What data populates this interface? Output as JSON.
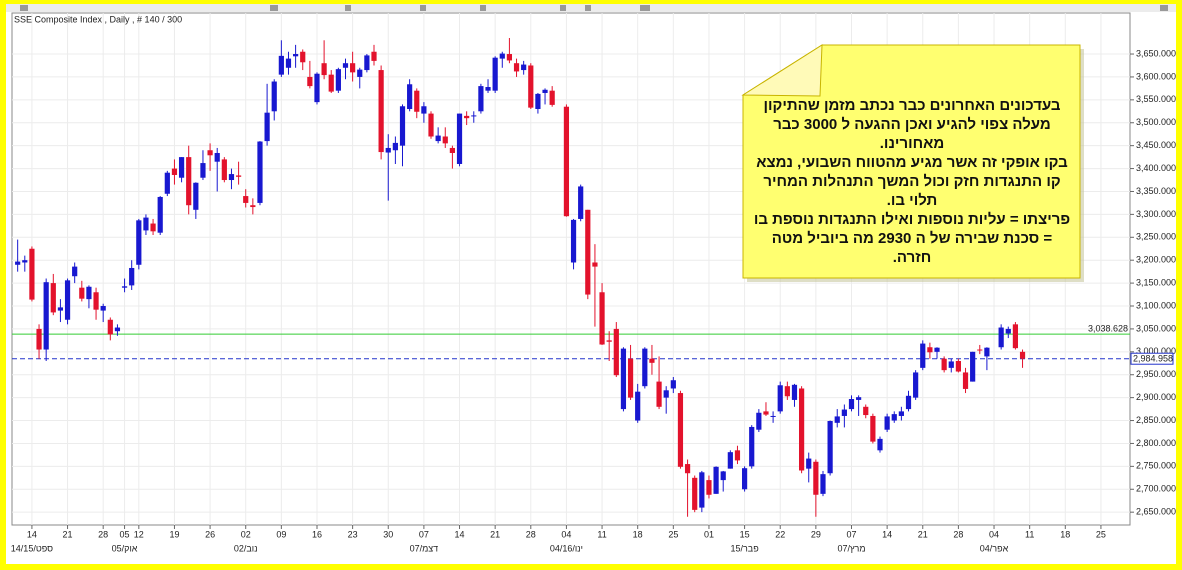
{
  "chart_data": {
    "type": "candlestick",
    "title": "SSE Composite Index , Daily , # 140 / 300",
    "up_color": "#1818d0",
    "down_color": "#e3122c",
    "grid": true,
    "categories": [
      null,
      null,
      "14",
      null,
      null,
      null,
      null,
      "21",
      null,
      null,
      null,
      null,
      "28",
      null,
      null,
      "05",
      null,
      "12",
      null,
      null,
      null,
      null,
      "19",
      null,
      null,
      null,
      null,
      "26",
      null,
      null,
      null,
      null,
      "02",
      null,
      null,
      null,
      null,
      "09",
      null,
      null,
      null,
      null,
      "16",
      null,
      null,
      null,
      null,
      "23",
      null,
      null,
      null,
      null,
      "30",
      null,
      null,
      null,
      null,
      "07",
      null,
      null,
      null,
      null,
      "14",
      null,
      null,
      null,
      null,
      "21",
      null,
      null,
      null,
      null,
      "28",
      null,
      null,
      null,
      null,
      "04",
      null,
      null,
      null,
      null,
      "11",
      null,
      null,
      null,
      null,
      "18",
      null,
      null,
      null,
      null,
      "25",
      null,
      null,
      null,
      null,
      "01",
      null,
      null,
      null,
      null,
      "15",
      null,
      null,
      null,
      null,
      "22",
      null,
      null,
      null,
      null,
      "29",
      null,
      null,
      null,
      null,
      "07",
      null,
      null,
      null,
      null,
      "14",
      null,
      null,
      null,
      null,
      "21",
      null,
      null,
      null,
      null,
      "28",
      null,
      null,
      null,
      null,
      "04",
      null,
      null,
      null,
      null,
      "11",
      null,
      null,
      null,
      null,
      "18",
      null,
      null,
      null,
      null,
      "25",
      null,
      null,
      null,
      null
    ],
    "subcategories": [
      null,
      null,
      "14/15/ספט",
      null,
      null,
      null,
      null,
      null,
      null,
      null,
      null,
      null,
      null,
      null,
      null,
      "05/אוק",
      null,
      null,
      null,
      null,
      null,
      null,
      null,
      null,
      null,
      null,
      null,
      null,
      null,
      null,
      null,
      null,
      "02/נוב",
      null,
      null,
      null,
      null,
      null,
      null,
      null,
      null,
      null,
      null,
      null,
      null,
      null,
      null,
      null,
      null,
      null,
      null,
      null,
      null,
      null,
      null,
      null,
      null,
      "07/דצמ",
      null,
      null,
      null,
      null,
      null,
      null,
      null,
      null,
      null,
      null,
      null,
      null,
      null,
      null,
      null,
      null,
      null,
      null,
      null,
      "04/16/ינו",
      null,
      null,
      null,
      null,
      null,
      null,
      null,
      null,
      null,
      null,
      null,
      null,
      null,
      null,
      null,
      null,
      null,
      null,
      null,
      null,
      null,
      null,
      null,
      null,
      "15/פבר",
      null,
      null,
      null,
      null,
      null,
      null,
      null,
      null,
      null,
      null,
      null,
      null,
      null,
      null,
      "07/מרץ",
      null,
      null,
      null,
      null,
      null,
      null,
      null,
      null,
      null,
      null,
      null,
      null,
      null,
      null,
      null,
      null,
      null,
      null,
      null,
      "04/אפר",
      null,
      null,
      null,
      null,
      null,
      null,
      null,
      null,
      null,
      null,
      null,
      null,
      null,
      null,
      null,
      null,
      null,
      null,
      null
    ],
    "open": [
      3190,
      3195,
      3225,
      3050,
      3005,
      3150,
      3090,
      3070,
      3165,
      3140,
      3115,
      3130,
      3090,
      3070,
      3045,
      3140,
      3145,
      3190,
      3265,
      3280,
      3260,
      3345,
      3400,
      3380,
      3425,
      3310,
      3380,
      3440,
      3415,
      3420,
      3375,
      3385,
      3340,
      3320,
      3325,
      3460,
      3525,
      3605,
      3620,
      3645,
      3655,
      3600,
      3545,
      3630,
      3605,
      3570,
      3620,
      3630,
      3600,
      3615,
      3655,
      3615,
      3435,
      3440,
      3450,
      3530,
      3570,
      3520,
      3520,
      3460,
      3470,
      3445,
      3410,
      3515,
      3515,
      3525,
      3570,
      3570,
      3640,
      3650,
      3630,
      3615,
      3625,
      3530,
      3565,
      3570,
      null,
      3535,
      3195,
      3290,
      3310,
      3195,
      3130,
      3025,
      3050,
      2875,
      2985,
      2850,
      2925,
      2985,
      2935,
      2900,
      2920,
      2910,
      2755,
      2725,
      2660,
      2720,
      2690,
      2720,
      2745,
      2785,
      2700,
      2750,
      2830,
      2870,
      2860,
      2870,
      2925,
      2895,
      2920,
      2745,
      2760,
      2690,
      2735,
      2845,
      2860,
      2875,
      2895,
      2880,
      2860,
      2785,
      2830,
      2850,
      2860,
      2875,
      2900,
      2965,
      3010,
      3000,
      2985,
      2965,
      2980,
      2955,
      2935,
      3005,
      2990,
      null,
      3010,
      3040,
      3060,
      3000,
      null,
      null,
      null,
      null,
      null,
      null,
      null,
      null,
      null,
      null,
      null,
      null,
      null,
      null,
      null
    ],
    "high": [
      3245,
      3210,
      3230,
      3060,
      3160,
      3170,
      3115,
      3160,
      3195,
      3155,
      3145,
      3140,
      3105,
      3075,
      3060,
      3160,
      3200,
      3290,
      3300,
      3290,
      3340,
      3395,
      3420,
      3425,
      3450,
      3370,
      3440,
      3455,
      3445,
      3425,
      3400,
      3415,
      3355,
      3335,
      3460,
      3585,
      3595,
      3680,
      3655,
      3670,
      3660,
      3635,
      3610,
      3680,
      3615,
      3620,
      3640,
      3655,
      3620,
      3650,
      3670,
      3625,
      3475,
      3470,
      3540,
      3595,
      3575,
      3545,
      3525,
      3490,
      3490,
      3450,
      3520,
      3525,
      3525,
      3585,
      3595,
      3645,
      3655,
      3685,
      3640,
      3635,
      3630,
      3565,
      3575,
      3580,
      null,
      3540,
      3290,
      3365,
      3310,
      3235,
      3150,
      3045,
      3065,
      3010,
      3015,
      2930,
      3010,
      3015,
      2990,
      2925,
      2945,
      2915,
      2765,
      2730,
      2740,
      2730,
      2750,
      2740,
      2785,
      2795,
      2750,
      2840,
      2875,
      2890,
      2870,
      2935,
      2935,
      2930,
      2925,
      2780,
      2765,
      2740,
      2850,
      2875,
      2885,
      2905,
      2905,
      2885,
      2865,
      2815,
      2865,
      2870,
      2880,
      2915,
      2960,
      3025,
      3020,
      3010,
      2990,
      2985,
      2985,
      2965,
      3000,
      3015,
      3010,
      null,
      3060,
      3055,
      3065,
      3005,
      null,
      null,
      null,
      null,
      null,
      null,
      null,
      null,
      null,
      null,
      null,
      null,
      null,
      null,
      null
    ],
    "low": [
      3175,
      3175,
      3110,
      2985,
      2980,
      3080,
      3065,
      3060,
      3150,
      3110,
      3095,
      3070,
      3065,
      3025,
      3035,
      3130,
      3135,
      3180,
      3255,
      3255,
      3255,
      3340,
      3365,
      3370,
      3300,
      3290,
      3375,
      3395,
      3350,
      3370,
      3355,
      3365,
      3315,
      3300,
      3320,
      3450,
      3505,
      3600,
      3605,
      3620,
      3615,
      3575,
      3540,
      3595,
      3565,
      3565,
      3595,
      3590,
      3575,
      3610,
      3625,
      3420,
      3330,
      3410,
      3405,
      3525,
      3510,
      3500,
      3465,
      3455,
      3445,
      3400,
      3405,
      3495,
      3500,
      3520,
      3565,
      3565,
      3620,
      3630,
      3600,
      3605,
      3530,
      3520,
      3540,
      3535,
      null,
      3295,
      3180,
      3285,
      3115,
      3055,
      3015,
      2980,
      2945,
      2870,
      2895,
      2845,
      2920,
      2950,
      2875,
      2865,
      2910,
      2745,
      2640,
      2650,
      2650,
      2680,
      2690,
      2695,
      2745,
      2755,
      2695,
      2745,
      2825,
      2860,
      2845,
      2865,
      2895,
      2880,
      2735,
      2715,
      2640,
      2685,
      2730,
      2835,
      2835,
      2870,
      2860,
      2855,
      2800,
      2780,
      2825,
      2845,
      2850,
      2870,
      2895,
      2960,
      2985,
      2985,
      2955,
      2955,
      2955,
      2910,
      2935,
      2995,
      2960,
      null,
      3005,
      3030,
      3005,
      2965,
      null,
      null,
      null,
      null,
      null,
      null,
      null,
      null,
      null,
      null,
      null,
      null,
      null,
      null,
      null
    ],
    "close": [
      3197,
      3200,
      3114,
      3005,
      3152,
      3086,
      3097,
      3156,
      3186,
      3116,
      3142,
      3092,
      3100,
      3038,
      3053,
      3143,
      3183,
      3287,
      3293,
      3263,
      3338,
      3391,
      3386,
      3425,
      3320,
      3369,
      3412,
      3429,
      3434,
      3375,
      3388,
      3382,
      3325,
      3316,
      3459,
      3522,
      3590,
      3646,
      3640,
      3650,
      3632,
      3580,
      3607,
      3604,
      3568,
      3617,
      3630,
      3610,
      3616,
      3647,
      3635,
      3436,
      3445,
      3456,
      3536,
      3584,
      3524,
      3536,
      3470,
      3472,
      3455,
      3434,
      3520,
      3510,
      3516,
      3580,
      3578,
      3642,
      3651,
      3636,
      3612,
      3627,
      3533,
      3563,
      3572,
      3539,
      null,
      3296,
      3288,
      3361,
      3125,
      3186,
      3016,
      3022,
      2949,
      3007,
      2900,
      2913,
      3007,
      2976,
      2880,
      2916,
      2938,
      2749,
      2735,
      2655,
      2737,
      2688,
      2749,
      2739,
      2781,
      2763,
      2746,
      2836,
      2867,
      2863,
      2860,
      2927,
      2903,
      2928,
      2741,
      2767,
      2688,
      2733,
      2849,
      2859,
      2874,
      2897,
      2901,
      2862,
      2804,
      2810,
      2859,
      2864,
      2870,
      2904,
      2955,
      3018,
      2999,
      3009,
      2960,
      2979,
      2957,
      2919,
      3000,
      3003,
      3009,
      null,
      3053,
      3050,
      3008,
      2985,
      null,
      null,
      null,
      null,
      null,
      null,
      null,
      null,
      null,
      null,
      null,
      null,
      null,
      null,
      null
    ],
    "ylim": [
      2622,
      3709
    ],
    "yticks": [
      {
        "value": 2650,
        "label": "2,650.000"
      },
      {
        "value": 2700,
        "label": "2,700.000"
      },
      {
        "value": 2750,
        "label": "2,750.000"
      },
      {
        "value": 2800,
        "label": "2,800.000"
      },
      {
        "value": 2850,
        "label": "2,850.000"
      },
      {
        "value": 2900,
        "label": "2,900.000"
      },
      {
        "value": 2950,
        "label": "2,950.000"
      },
      {
        "value": 3000,
        "label": "3,000.000"
      },
      {
        "value": 3050,
        "label": "3,050.000"
      },
      {
        "value": 3100,
        "label": "3,100.000"
      },
      {
        "value": 3150,
        "label": "3,150.000"
      },
      {
        "value": 3200,
        "label": "3,200.000"
      },
      {
        "value": 3250,
        "label": "3,250.000"
      },
      {
        "value": 3300,
        "label": "3,300.000"
      },
      {
        "value": 3350,
        "label": "3,350.000"
      },
      {
        "value": 3400,
        "label": "3,400.000"
      },
      {
        "value": 3450,
        "label": "3,450.000"
      },
      {
        "value": 3500,
        "label": "3,500.000"
      },
      {
        "value": 3550,
        "label": "3,550.000"
      },
      {
        "value": 3600,
        "label": "3,600.000"
      },
      {
        "value": 3650,
        "label": "3,650.000"
      }
    ],
    "hlines": [
      {
        "value": 3038.628,
        "label": "3,038.628",
        "color": "#33cc33",
        "dashed": false
      },
      {
        "value": 2984.958,
        "label": "2,984.958",
        "color": "#2233cc",
        "dashed": true
      }
    ],
    "annotation": [
      "בעדכונים האחרונים כבר נכתב מזמן שהתיקון",
      "מעלה צפוי להגיע ואכן  ההגעה ל 3000 כבר",
      "מאחורינו.",
      "בקו אופקי זה אשר מגיע מהטווח השבועי, נמצא",
      "קו התנגדות חזק וכול המשך התנהלות המחיר",
      "תלוי בו.",
      "פריצתו = עליות נוספות ואילו  התנגדות נוספת בו",
      "= סכנת שבירה של ה 2930 מה ביוביל מטה",
      "חזרה."
    ]
  }
}
